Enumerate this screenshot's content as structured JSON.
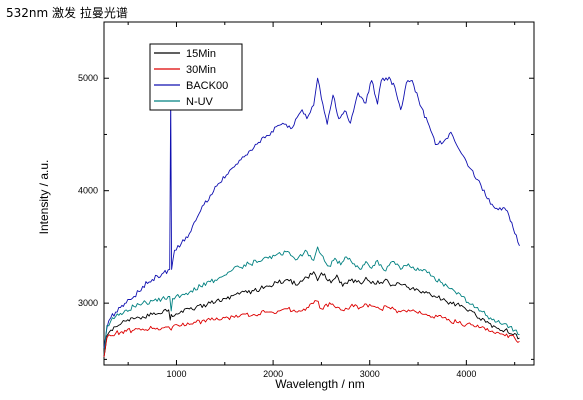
{
  "page": {
    "title": "532nm 激发 拉曼光谱"
  },
  "chart_data": {
    "type": "line",
    "title": "532nm 激发 拉曼光谱",
    "xlabel": "Wavelength / nm",
    "ylabel": "Intensity / a.u.",
    "xlim": [
      250,
      4700
    ],
    "ylim": [
      2450,
      5500
    ],
    "x_ticks": [
      1000,
      2000,
      3000,
      4000
    ],
    "y_ticks": [
      3000,
      4000,
      5000
    ],
    "grid": false,
    "legend_position": "top-left",
    "series": [
      {
        "name": "15Min",
        "color": "#000000",
        "x": [
          250,
          280,
          320,
          370,
          420,
          480,
          560,
          650,
          750,
          850,
          920,
          935,
          945,
          960,
          1050,
          1200,
          1350,
          1500,
          1650,
          1800,
          1950,
          2050,
          2150,
          2250,
          2350,
          2420,
          2460,
          2500,
          2600,
          2660,
          2720,
          2800,
          2900,
          2960,
          3050,
          3150,
          3250,
          3300,
          3400,
          3500,
          3600,
          3700,
          3800,
          3900,
          4000,
          4100,
          4200,
          4300,
          4400,
          4500,
          4550
        ],
        "y": [
          2520,
          2710,
          2760,
          2790,
          2810,
          2840,
          2860,
          2880,
          2900,
          2910,
          2940,
          2850,
          2900,
          2880,
          2930,
          2960,
          3000,
          3040,
          3080,
          3110,
          3150,
          3180,
          3210,
          3160,
          3230,
          3280,
          3200,
          3270,
          3180,
          3250,
          3150,
          3200,
          3180,
          3230,
          3170,
          3200,
          3160,
          3180,
          3140,
          3120,
          3090,
          3050,
          3010,
          2990,
          2940,
          2890,
          2830,
          2790,
          2760,
          2730,
          2690
        ]
      },
      {
        "name": "30Min",
        "color": "#dd0000",
        "x": [
          250,
          280,
          320,
          370,
          420,
          480,
          560,
          650,
          750,
          850,
          920,
          945,
          960,
          1050,
          1200,
          1350,
          1500,
          1650,
          1800,
          1950,
          2050,
          2150,
          2250,
          2350,
          2450,
          2500,
          2600,
          2700,
          2800,
          2900,
          3000,
          3100,
          3200,
          3300,
          3400,
          3500,
          3600,
          3700,
          3800,
          3900,
          4000,
          4100,
          4200,
          4300,
          4400,
          4500,
          4550
        ],
        "y": [
          2520,
          2690,
          2710,
          2730,
          2740,
          2750,
          2760,
          2770,
          2775,
          2780,
          2790,
          2760,
          2790,
          2800,
          2830,
          2850,
          2870,
          2880,
          2900,
          2920,
          2930,
          2950,
          2920,
          2960,
          3020,
          2950,
          2990,
          2940,
          2970,
          2960,
          2990,
          2950,
          2960,
          2930,
          2940,
          2910,
          2890,
          2880,
          2850,
          2830,
          2810,
          2790,
          2760,
          2730,
          2710,
          2690,
          2660
        ]
      },
      {
        "name": "BACK00",
        "color": "#1010b0",
        "x": [
          250,
          280,
          320,
          370,
          420,
          480,
          560,
          650,
          750,
          850,
          930,
          940,
          950,
          980,
          1050,
          1150,
          1250,
          1350,
          1450,
          1550,
          1650,
          1750,
          1850,
          1950,
          2050,
          2100,
          2200,
          2300,
          2350,
          2420,
          2460,
          2500,
          2560,
          2620,
          2680,
          2740,
          2800,
          2880,
          2960,
          3020,
          3080,
          3120,
          3200,
          3260,
          3320,
          3380,
          3440,
          3520,
          3600,
          3680,
          3760,
          3840,
          3880,
          3950,
          4050,
          4150,
          4250,
          4330,
          4380,
          4440,
          4500,
          4550
        ],
        "y": [
          2600,
          2780,
          2870,
          2920,
          2960,
          3000,
          3060,
          3150,
          3210,
          3260,
          3300,
          4850,
          3300,
          3470,
          3530,
          3640,
          3820,
          3960,
          4070,
          4180,
          4270,
          4350,
          4430,
          4490,
          4580,
          4600,
          4560,
          4720,
          4640,
          4760,
          5000,
          4820,
          4590,
          4850,
          4640,
          4710,
          4600,
          4870,
          4780,
          4980,
          4770,
          4980,
          5010,
          4920,
          4720,
          4960,
          4980,
          4760,
          4610,
          4410,
          4430,
          4520,
          4440,
          4330,
          4190,
          4050,
          3880,
          3830,
          3850,
          3780,
          3620,
          3510
        ]
      },
      {
        "name": "N-UV",
        "color": "#008080",
        "x": [
          250,
          280,
          320,
          370,
          420,
          480,
          560,
          650,
          750,
          850,
          930,
          945,
          960,
          1050,
          1150,
          1250,
          1350,
          1450,
          1550,
          1650,
          1750,
          1850,
          1950,
          2050,
          2150,
          2250,
          2350,
          2420,
          2460,
          2500,
          2580,
          2640,
          2700,
          2760,
          2840,
          2900,
          2960,
          3020,
          3080,
          3150,
          3250,
          3320,
          3400,
          3480,
          3560,
          3650,
          3750,
          3850,
          3950,
          4050,
          4150,
          4250,
          4350,
          4450,
          4550
        ],
        "y": [
          2540,
          2800,
          2840,
          2880,
          2910,
          2940,
          2970,
          3000,
          3020,
          3040,
          3060,
          2930,
          3040,
          3070,
          3110,
          3150,
          3190,
          3230,
          3280,
          3320,
          3350,
          3370,
          3400,
          3440,
          3460,
          3390,
          3460,
          3380,
          3500,
          3430,
          3330,
          3400,
          3340,
          3410,
          3350,
          3300,
          3370,
          3310,
          3380,
          3290,
          3370,
          3300,
          3350,
          3290,
          3300,
          3240,
          3180,
          3130,
          3060,
          2990,
          2930,
          2870,
          2820,
          2790,
          2720
        ]
      }
    ]
  }
}
